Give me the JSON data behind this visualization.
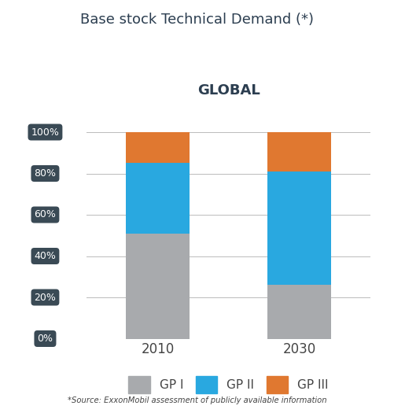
{
  "title": "Base stock Technical Demand (*)",
  "subtitle": "GLOBAL",
  "categories": [
    "2010",
    "2030"
  ],
  "gp1": [
    51,
    26
  ],
  "gp2": [
    34,
    55
  ],
  "gp3": [
    15,
    19
  ],
  "color_gp1": "#A8AAAD",
  "color_gp2": "#29A8E0",
  "color_gp3": "#E07830",
  "yticks": [
    0,
    20,
    40,
    60,
    80,
    100
  ],
  "ytick_labels": [
    "0%",
    "20%",
    "40%",
    "60%",
    "80%",
    "100%"
  ],
  "bar_width": 0.45,
  "source_text": "*Source: ExxonMobil assessment of publicly available information",
  "legend_labels": [
    "GP I",
    "GP II",
    "GP III"
  ],
  "background_color": "#ffffff",
  "tick_label_bg": "#3A4A55",
  "tick_label_fg": "#ffffff",
  "title_color": "#2C3E50",
  "subtitle_color": "#2C3E50",
  "xticklabel_color": "#444444",
  "grid_color": "#bbbbbb",
  "source_color": "#444444"
}
